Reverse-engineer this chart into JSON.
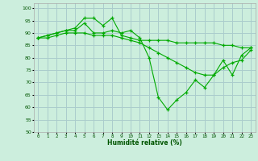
{
  "xlabel": "Humidité relative (%)",
  "background_color": "#cceedd",
  "grid_color": "#aacccc",
  "line_color": "#00aa00",
  "ylim": [
    50,
    102
  ],
  "xlim": [
    -0.5,
    23.5
  ],
  "yticks": [
    50,
    55,
    60,
    65,
    70,
    75,
    80,
    85,
    90,
    95,
    100
  ],
  "xticks": [
    0,
    1,
    2,
    3,
    4,
    5,
    6,
    7,
    8,
    9,
    10,
    11,
    12,
    13,
    14,
    15,
    16,
    17,
    18,
    19,
    20,
    21,
    22,
    23
  ],
  "series": [
    [
      88,
      89,
      90,
      91,
      92,
      96,
      96,
      93,
      96,
      89,
      88,
      87,
      87,
      87,
      87,
      86,
      86,
      86,
      86,
      86,
      85,
      85,
      84,
      84
    ],
    [
      88,
      89,
      90,
      91,
      91,
      94,
      90,
      90,
      91,
      90,
      91,
      88,
      80,
      64,
      59,
      63,
      66,
      71,
      68,
      73,
      79,
      73,
      81,
      84
    ],
    [
      88,
      88,
      89,
      90,
      90,
      90,
      89,
      89,
      89,
      88,
      87,
      86,
      84,
      82,
      80,
      78,
      76,
      74,
      73,
      73,
      76,
      78,
      79,
      83
    ]
  ]
}
